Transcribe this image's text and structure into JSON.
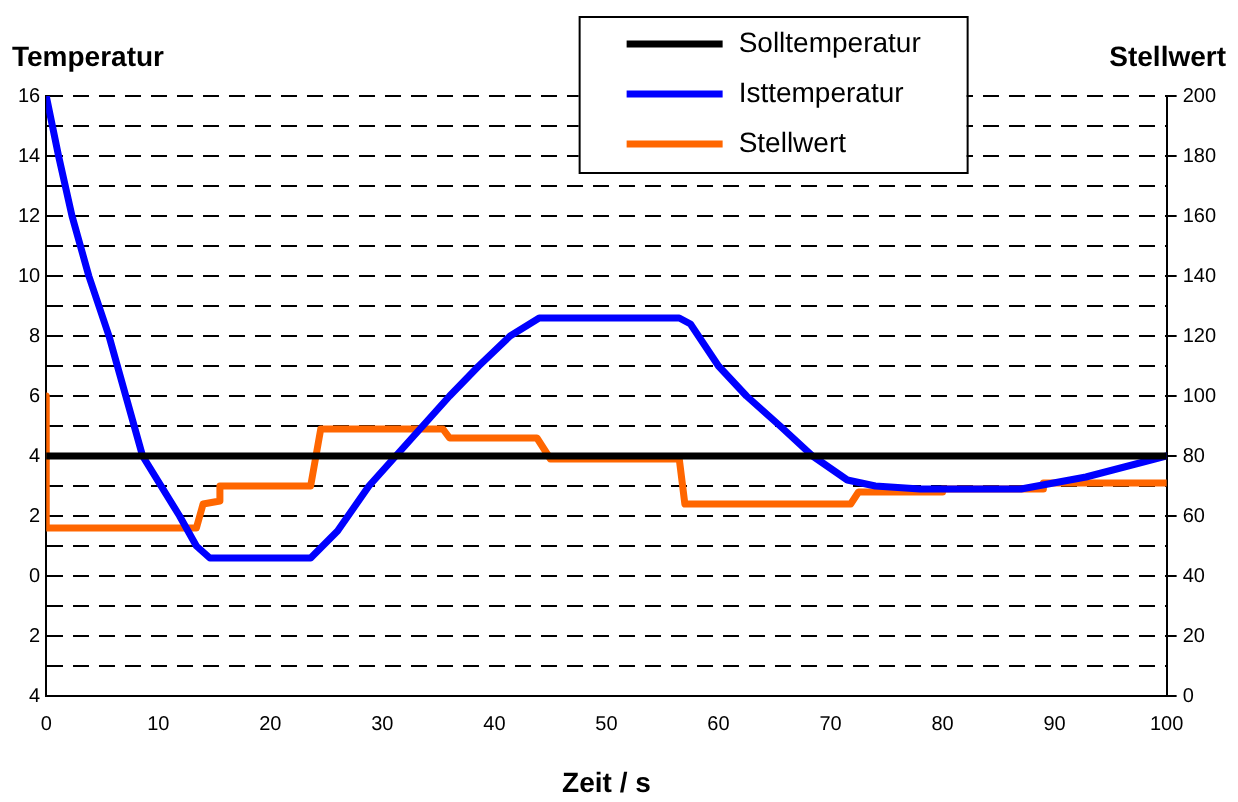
{
  "chart_data": {
    "type": "line",
    "xlabel": "Zeit / s",
    "ylabel": "Temperatur",
    "y2label": "Stellwert",
    "xlim": [
      0,
      100
    ],
    "xticks": [
      0,
      10,
      20,
      30,
      40,
      50,
      60,
      70,
      80,
      90,
      100
    ],
    "ylim": [
      -4,
      16
    ],
    "yticks": [
      {
        "value": -4,
        "label": "4"
      },
      {
        "value": -3,
        "label": null
      },
      {
        "value": -2,
        "label": "2"
      },
      {
        "value": -1,
        "label": null
      },
      0,
      {
        "value": 1,
        "label": null
      },
      2,
      {
        "value": 3,
        "label": null
      },
      4,
      {
        "value": 5,
        "label": null
      },
      6,
      {
        "value": 7,
        "label": null
      },
      8,
      {
        "value": 9,
        "label": null
      },
      10,
      {
        "value": 11,
        "label": null
      },
      12,
      {
        "value": 13,
        "label": null
      },
      14,
      {
        "value": 15,
        "label": null
      },
      16
    ],
    "y2lim": [
      0,
      200
    ],
    "y2ticks": [
      0,
      20,
      40,
      60,
      80,
      100,
      120,
      140,
      160,
      180,
      200
    ],
    "grid": "y",
    "legend": "top right",
    "line_style": "solid",
    "marker": "none",
    "series": [
      {
        "name": "Solltemperatur",
        "color": "#000000",
        "x": [
          0,
          100
        ],
        "values": [
          4,
          4
        ]
      },
      {
        "name": "Isttemperatur",
        "color": "#0000ff",
        "x": [
          0,
          1.1,
          2.3,
          3.8,
          5.6,
          7.1,
          8.6,
          11.9,
          13.4,
          14.6,
          23.6,
          26,
          28.8,
          31.2,
          33.6,
          36,
          38.6,
          41.4,
          44,
          56.5,
          57.5,
          60,
          62.5,
          65.5,
          68.4,
          71.5,
          74,
          78,
          87,
          92.8,
          100
        ],
        "values": [
          16,
          14,
          12,
          10,
          8,
          6,
          4,
          2,
          1,
          0.6,
          0.6,
          1.5,
          3,
          4,
          5,
          6,
          7,
          8,
          8.6,
          8.6,
          8.4,
          7,
          6,
          5,
          4,
          3.2,
          3,
          2.9,
          2.9,
          3.3,
          4
        ]
      },
      {
        "name": "Stellwert",
        "color": "#ff6600",
        "axis": "y2",
        "x": [
          0,
          0,
          13.4,
          14,
          15.5,
          15.5,
          23.6,
          24.5,
          35.4,
          36,
          43.8,
          45,
          56.5,
          57,
          71.8,
          72.5,
          80,
          80,
          89,
          89,
          100
        ],
        "values": [
          100,
          56,
          56,
          64,
          65,
          70,
          70,
          89,
          89,
          86,
          86,
          79,
          79,
          64,
          64,
          68,
          68,
          69,
          69,
          71,
          71
        ]
      }
    ]
  }
}
